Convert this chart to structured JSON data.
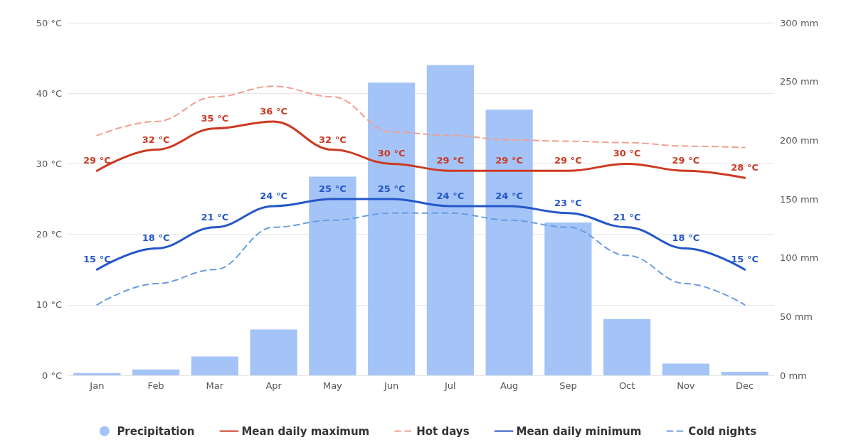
{
  "chart_data": {
    "type": "bar",
    "categories": [
      "Jan",
      "Feb",
      "Mar",
      "Apr",
      "May",
      "Jun",
      "Jul",
      "Aug",
      "Sep",
      "Oct",
      "Nov",
      "Dec"
    ],
    "series": [
      {
        "name": "Precipitation",
        "axis": "y2",
        "color": "#a4c4f8",
        "values": [
          2,
          5,
          16,
          39,
          169,
          249,
          264,
          226,
          130,
          48,
          10,
          3
        ]
      },
      {
        "name": "Mean daily maximum",
        "type": "line",
        "color": "#cc3a22",
        "line_style": "solid",
        "values": [
          29,
          32,
          35,
          36,
          32,
          30,
          29,
          29,
          29,
          30,
          29,
          28
        ],
        "value_labels": [
          "29 °C",
          "32 °C",
          "35 °C",
          "36 °C",
          "32 °C",
          "30 °C",
          "29 °C",
          "29 °C",
          "29 °C",
          "30 °C",
          "29 °C",
          "28 °C"
        ]
      },
      {
        "name": "Hot days",
        "type": "line",
        "color": "#f0a090",
        "line_style": "dashed",
        "values": [
          34,
          36,
          39.5,
          41,
          39.5,
          34.5,
          34,
          33.4,
          33.2,
          33,
          32.5,
          32.3
        ]
      },
      {
        "name": "Mean daily minimum",
        "type": "line",
        "color": "#2457c8",
        "line_style": "solid",
        "values": [
          15,
          18,
          21,
          24,
          25,
          25,
          24,
          24,
          23,
          21,
          18,
          15
        ],
        "value_labels": [
          "15 °C",
          "18 °C",
          "21 °C",
          "24 °C",
          "25 °C",
          "25 °C",
          "24 °C",
          "24 °C",
          "23 °C",
          "21 °C",
          "18 °C",
          "15 °C"
        ]
      },
      {
        "name": "Cold nights",
        "type": "line",
        "color": "#6a9ee0",
        "line_style": "dashed",
        "values": [
          10,
          13,
          15,
          21,
          22,
          23,
          23,
          22,
          21,
          17,
          13,
          10
        ]
      }
    ],
    "ylim": [
      0,
      50
    ],
    "yticks": [
      {
        "value": 0,
        "label": "0 °C"
      },
      {
        "value": 10,
        "label": "10 °C"
      },
      {
        "value": 20,
        "label": "20 °C"
      },
      {
        "value": 30,
        "label": "30 °C"
      },
      {
        "value": 40,
        "label": "40 °C"
      },
      {
        "value": 50,
        "label": "50 °C"
      }
    ],
    "y2lim": [
      0,
      300
    ],
    "y2ticks": [
      {
        "value": 0,
        "label": "0 mm"
      },
      {
        "value": 50,
        "label": "50 mm"
      },
      {
        "value": 100,
        "label": "100 mm"
      },
      {
        "value": 150,
        "label": "150 mm"
      },
      {
        "value": 200,
        "label": "200 mm"
      },
      {
        "value": 250,
        "label": "250 mm"
      },
      {
        "value": 300,
        "label": "300 mm"
      }
    ],
    "grid": "y",
    "legend": "bottom",
    "marker": "none"
  }
}
